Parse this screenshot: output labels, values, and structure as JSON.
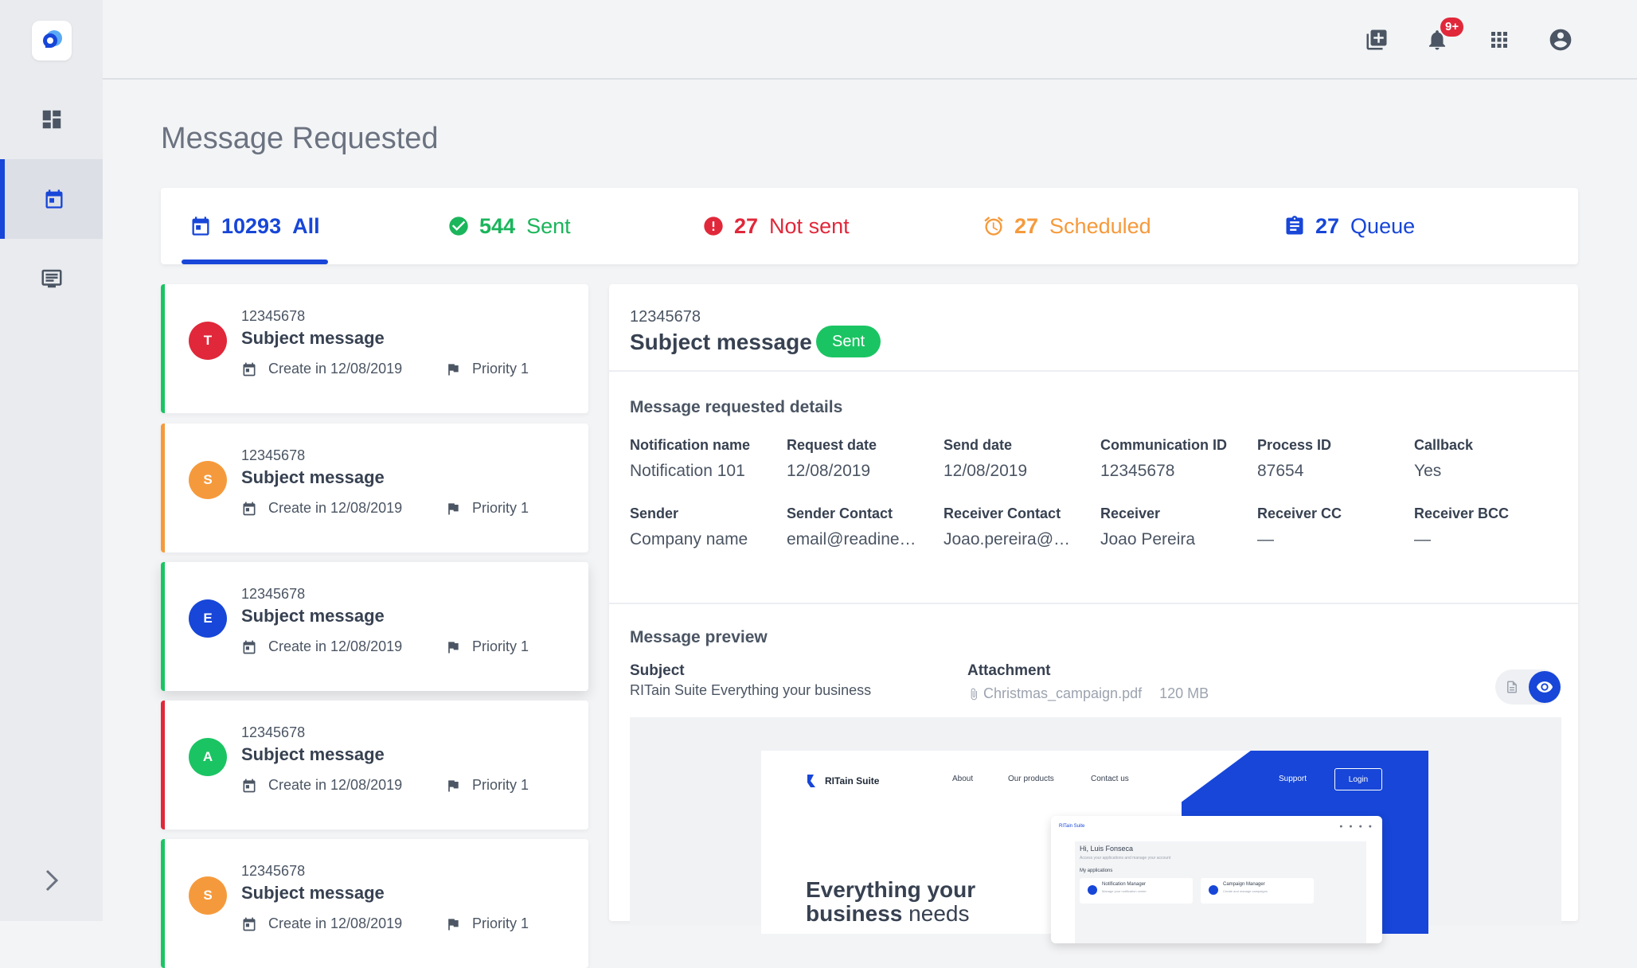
{
  "page": {
    "title": "Message Requested"
  },
  "topbar": {
    "notification_badge": "9+",
    "icons": [
      "add-box-icon",
      "bell-icon",
      "apps-grid-icon",
      "account-circle-icon"
    ]
  },
  "sidebar": {
    "items": [
      "dashboard-icon",
      "calendar-icon",
      "message-icon"
    ],
    "active": "calendar-icon"
  },
  "tabs": [
    {
      "count": "10293",
      "label": "All",
      "color": "#1746d8"
    },
    {
      "count": "544",
      "label": "Sent",
      "color": "#1bb55c"
    },
    {
      "count": "27",
      "label": "Not sent",
      "color": "#e0283a"
    },
    {
      "count": "27",
      "label": "Scheduled",
      "color": "#f59a3c"
    },
    {
      "count": "27",
      "label": "Queue",
      "color": "#1746d8"
    }
  ],
  "messages": [
    {
      "initial": "T",
      "avatar_color": "#e0283a",
      "border_color": "#1bc463",
      "id": "12345678",
      "subject": "Subject message",
      "created": "Create in 12/08/2019",
      "priority": "Priority 1"
    },
    {
      "initial": "S",
      "avatar_color": "#f59a3c",
      "border_color": "#f59a3c",
      "id": "12345678",
      "subject": "Subject message",
      "created": "Create in 12/08/2019",
      "priority": "Priority 1"
    },
    {
      "initial": "E",
      "avatar_color": "#1746d8",
      "border_color": "#1bc463",
      "id": "12345678",
      "subject": "Subject message",
      "created": "Create in 12/08/2019",
      "priority": "Priority 1"
    },
    {
      "initial": "A",
      "avatar_color": "#1bc463",
      "border_color": "#e0283a",
      "id": "12345678",
      "subject": "Subject message",
      "created": "Create in 12/08/2019",
      "priority": "Priority 1"
    },
    {
      "initial": "S",
      "avatar_color": "#f59a3c",
      "border_color": "#1bc463",
      "id": "12345678",
      "subject": "Subject message",
      "created": "Create in 12/08/2019",
      "priority": "Priority 1"
    }
  ],
  "detail": {
    "id": "12345678",
    "subject": "Subject message",
    "status": "Sent",
    "status_color": "#1bc463",
    "details_title": "Message requested details",
    "fields": [
      {
        "label": "Notification name",
        "value": "Notification 101"
      },
      {
        "label": "Request date",
        "value": "12/08/2019"
      },
      {
        "label": "Send date",
        "value": "12/08/2019"
      },
      {
        "label": "Communication ID",
        "value": "12345678"
      },
      {
        "label": "Process ID",
        "value": "87654"
      },
      {
        "label": "Callback",
        "value": "Yes"
      },
      {
        "label": "Sender",
        "value": "Company name"
      },
      {
        "label": "Sender Contact",
        "value": "email@readine…"
      },
      {
        "label": "Receiver Contact",
        "value": "Joao.pereira@…"
      },
      {
        "label": "Receiver",
        "value": "Joao Pereira"
      },
      {
        "label": "Receiver CC",
        "value": "—"
      },
      {
        "label": "Receiver BCC",
        "value": "—"
      }
    ],
    "preview": {
      "title": "Message preview",
      "subject_label": "Subject",
      "subject_value": "RITain Suite Everything your business",
      "attachment_label": "Attachment",
      "attachment_name": "Christmas_campaign.pdf",
      "attachment_size": "120 MB"
    },
    "mock": {
      "brand": "RITain Suite",
      "nav": [
        "About",
        "Our products",
        "Contact us"
      ],
      "support": "Support",
      "login": "Login",
      "headline_1": "Everything your",
      "headline_2": "business",
      "headline_3": "needs",
      "shot_brand": "RITain Suite",
      "greeting": "Hi, Luis Fonseca",
      "greeting_sub": "Access your applications and manage your account",
      "apps_title": "My applications",
      "app_1": "Notification Manager",
      "app_1_desc": "Manage your notification center",
      "app_2": "Campaign Manager",
      "app_2_desc": "Create and manage campaigns"
    }
  }
}
